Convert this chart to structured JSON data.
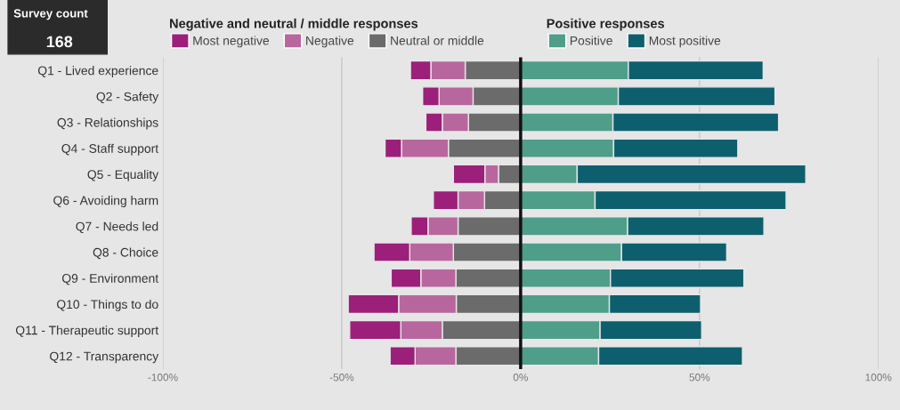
{
  "chart_data": {
    "type": "bar",
    "orientation": "horizontal",
    "stacked": true,
    "categories": [
      "Q1 - Lived experience",
      "Q2 - Safety",
      "Q3 - Relationships",
      "Q4 - Staff support",
      "Q5 - Equality",
      "Q6 - Avoiding harm",
      "Q7 - Needs led",
      "Q8 - Choice",
      "Q9 - Environment",
      "Q10 - Things to do",
      "Q11 - Therapeutic support",
      "Q12 - Transparency"
    ],
    "series": [
      {
        "name": "Neutral or middle",
        "color": "#6b6b6b",
        "values": [
          -15.5,
          -13.3,
          -14.6,
          -20.2,
          -6.2,
          -10.1,
          -17.5,
          -18.8,
          -18.1,
          -18,
          -21.9,
          -18.1
        ]
      },
      {
        "name": "Negative",
        "color": "#b8679e",
        "values": [
          -9.6,
          -9.5,
          -7.3,
          -13.1,
          -3.8,
          -7.4,
          -8.4,
          -12.2,
          -9.8,
          -16.1,
          -11.6,
          -11.4
        ]
      },
      {
        "name": "Most negative",
        "color": "#9c1f7a",
        "values": [
          -5.7,
          -4.6,
          -4.6,
          -4.6,
          -8.8,
          -6.9,
          -4.7,
          -10,
          -8.3,
          -14.1,
          -14.3,
          -7
        ]
      },
      {
        "name": "Positive",
        "color": "#4f9e8a",
        "values": [
          30.1,
          27.3,
          25.8,
          26,
          15.8,
          20.8,
          29.9,
          28.2,
          25.1,
          24.8,
          22.2,
          21.8
        ]
      },
      {
        "name": "Most positive",
        "color": "#0e5f6e",
        "values": [
          37.7,
          43.8,
          46.3,
          34.7,
          63.9,
          53.4,
          38.1,
          29.4,
          37.3,
          25.5,
          28.4,
          40.2
        ]
      }
    ],
    "xlim": [
      -100,
      100
    ],
    "xticks": [
      {
        "value": -100,
        "label": "-100%"
      },
      {
        "value": -50,
        "label": "-50%"
      },
      {
        "value": 0,
        "label": "0%"
      },
      {
        "value": 50,
        "label": "50%"
      },
      {
        "value": 100,
        "label": "100%"
      }
    ],
    "grid": "x",
    "legend": "top",
    "ref_lines": [
      {
        "axis": "x",
        "value": 0,
        "color": "#111111"
      }
    ],
    "annotations": [
      "Survey count",
      "168",
      "Negative and neutral / middle responses",
      "Positive responses"
    ]
  }
}
